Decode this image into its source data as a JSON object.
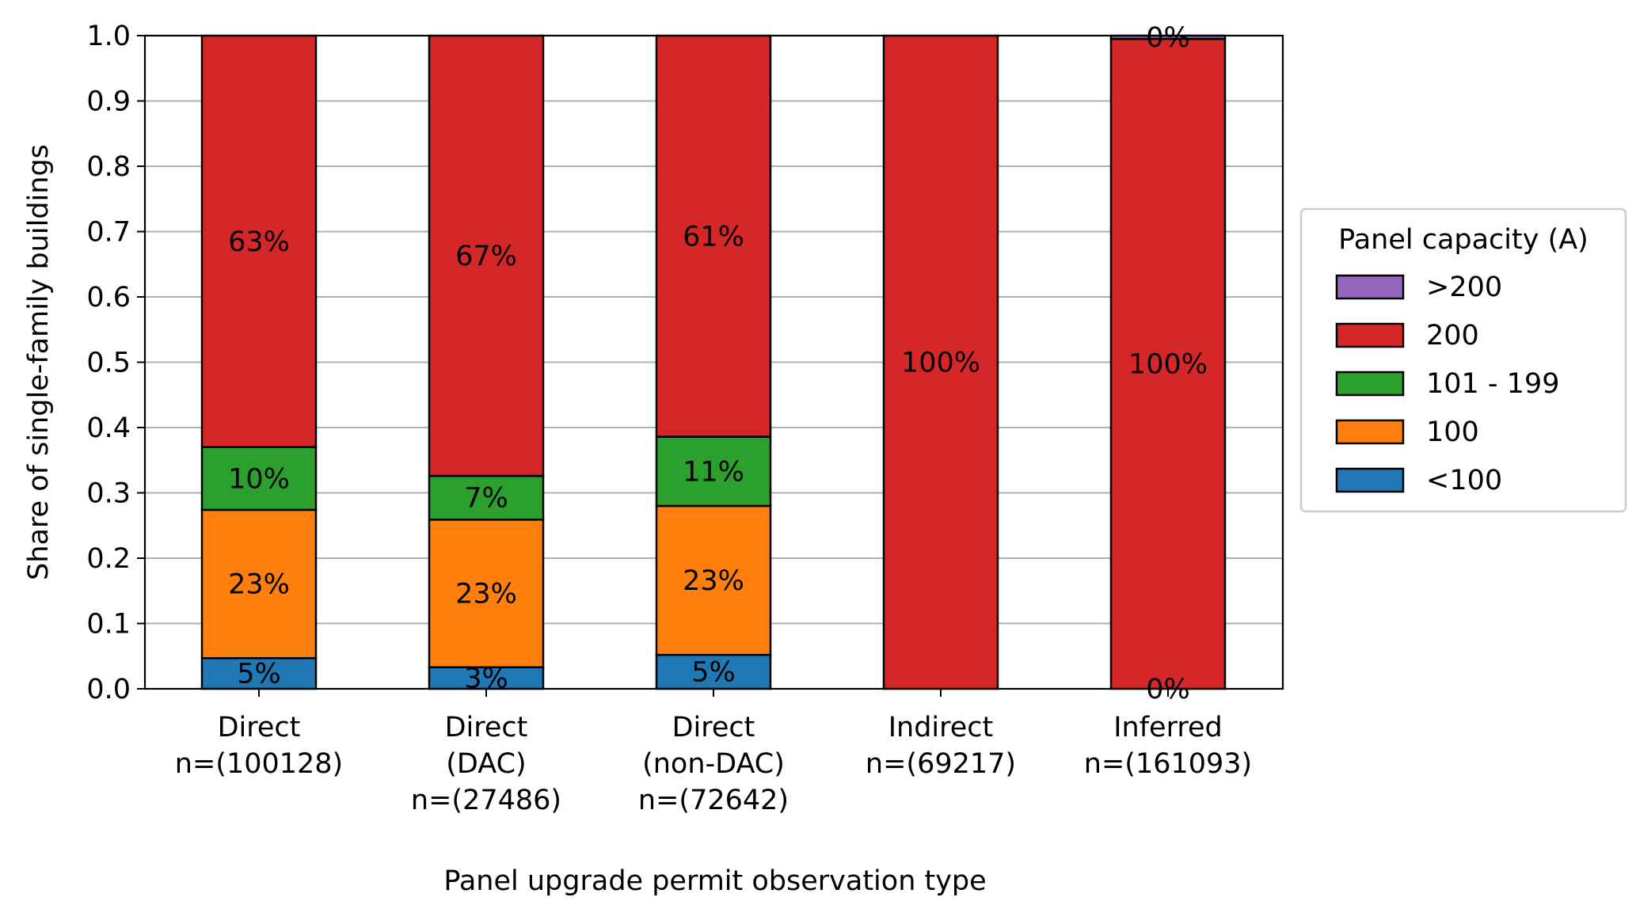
{
  "chart_data": {
    "type": "bar",
    "stacked": true,
    "xlabel": "Panel upgrade permit observation type",
    "ylabel": "Share of single-family buildings",
    "ylim": [
      0,
      1.0
    ],
    "yticks": [
      "0.0",
      "0.1",
      "0.2",
      "0.3",
      "0.4",
      "0.5",
      "0.6",
      "0.7",
      "0.8",
      "0.9",
      "1.0"
    ],
    "grid": "horizontal",
    "legend_placement": "right, outside plot",
    "categories": [
      [
        "Direct",
        "n=(100128)"
      ],
      [
        "Direct",
        "(DAC)",
        "n=(27486)"
      ],
      [
        "Direct",
        "(non-DAC)",
        "n=(72642)"
      ],
      [
        "Indirect",
        "n=(69217)"
      ],
      [
        "Inferred",
        "n=(161093)"
      ]
    ],
    "series": [
      {
        "name": "<100",
        "color": "#1f77b4",
        "values": [
          0.047,
          0.033,
          0.052,
          0.0,
          0.0
        ],
        "labels": [
          "5%",
          "3%",
          "5%",
          "",
          ""
        ]
      },
      {
        "name": "100",
        "color": "#ff7f0e",
        "values": [
          0.227,
          0.226,
          0.228,
          0.0,
          0.0
        ],
        "labels": [
          "23%",
          "23%",
          "23%",
          "",
          ""
        ]
      },
      {
        "name": "101 - 199",
        "color": "#2ca02c",
        "values": [
          0.096,
          0.067,
          0.106,
          0.0,
          0.0
        ],
        "labels": [
          "10%",
          "7%",
          "11%",
          "",
          ""
        ]
      },
      {
        "name": "200",
        "color": "#d62728",
        "values": [
          0.63,
          0.674,
          0.614,
          1.0,
          0.995
        ],
        "labels": [
          "63%",
          "67%",
          "61%",
          "100%",
          "100%"
        ]
      },
      {
        "name": ">200",
        "color": "#9467bd",
        "values": [
          0.0,
          0.0,
          0.0,
          0.0,
          0.005
        ],
        "labels": [
          "",
          "",
          "",
          "",
          "0%"
        ]
      }
    ],
    "extra_labels": [
      {
        "category_index": 4,
        "text": "0%"
      }
    ],
    "legend": {
      "title": "Panel capacity (A)",
      "entries": [
        {
          "label": ">200",
          "color": "#9467bd"
        },
        {
          "label": "200",
          "color": "#d62728"
        },
        {
          "label": "101 - 199",
          "color": "#2ca02c"
        },
        {
          "label": "100",
          "color": "#ff7f0e"
        },
        {
          "label": "<100",
          "color": "#1f77b4"
        }
      ]
    },
    "colors": {
      "grid": "#b0b0b0",
      "bar_edge": "#000000",
      "legend_border": "#cccccc"
    }
  }
}
